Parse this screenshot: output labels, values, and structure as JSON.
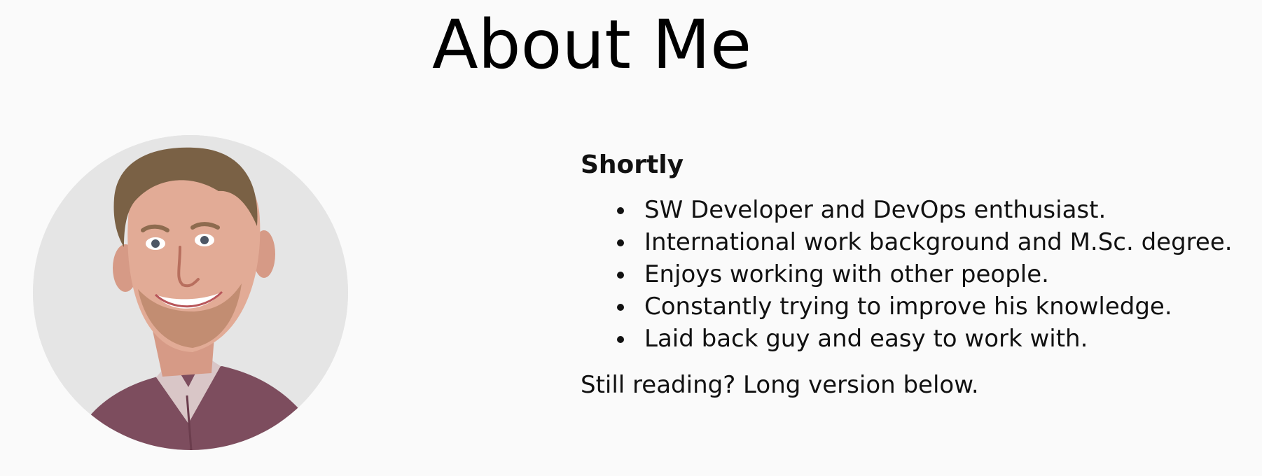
{
  "page": {
    "title": "About Me"
  },
  "about": {
    "heading": "Shortly",
    "items": [
      "SW Developer and DevOps enthusiast.",
      "International work background and M.Sc. degree.",
      "Enjoys working with other people.",
      "Constantly trying to improve his knowledge.",
      "Laid back guy and easy to work with."
    ],
    "footer_note": "Still reading? Long version below."
  },
  "colors": {
    "background": "#fafafa",
    "text": "#111111",
    "avatar_background": "#e5e5e5"
  }
}
